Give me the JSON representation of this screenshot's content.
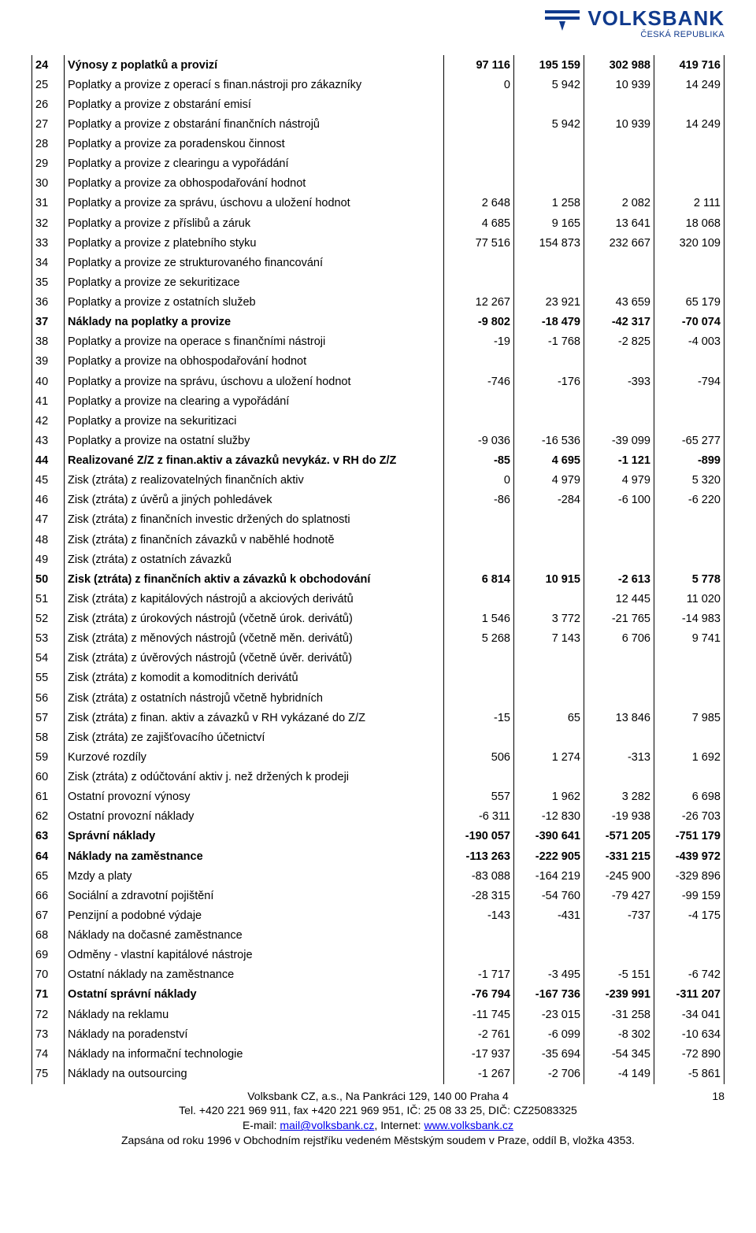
{
  "logo": {
    "brand": "VOLKSBANK",
    "sub": "ČESKÁ REPUBLIKA",
    "mark_color": "#103a8d"
  },
  "col_widths": {
    "n": 32,
    "label": "auto",
    "val": 80
  },
  "rows": [
    {
      "n": "24",
      "label": "Výnosy z poplatků a provizí",
      "v": [
        "97 116",
        "195 159",
        "302 988",
        "419 716"
      ],
      "bold": true
    },
    {
      "n": "25",
      "label": "Poplatky a provize z operací s finan.nástroji pro zákazníky",
      "v": [
        "0",
        "5 942",
        "10 939",
        "14 249"
      ]
    },
    {
      "n": "26",
      "label": "Poplatky a provize z obstarání emisí",
      "v": [
        "",
        "",
        "",
        ""
      ]
    },
    {
      "n": "27",
      "label": "Poplatky a provize z obstarání finančních nástrojů",
      "v": [
        "",
        "5 942",
        "10 939",
        "14 249"
      ]
    },
    {
      "n": "28",
      "label": "Poplatky a provize za poradenskou činnost",
      "v": [
        "",
        "",
        "",
        ""
      ]
    },
    {
      "n": "29",
      "label": "Poplatky a provize z clearingu a vypořádání",
      "v": [
        "",
        "",
        "",
        ""
      ]
    },
    {
      "n": "30",
      "label": "Poplatky a provize za obhospodařování hodnot",
      "v": [
        "",
        "",
        "",
        ""
      ]
    },
    {
      "n": "31",
      "label": "Poplatky a provize za správu, úschovu a uložení hodnot",
      "v": [
        "2 648",
        "1 258",
        "2 082",
        "2 111"
      ]
    },
    {
      "n": "32",
      "label": "Poplatky a provize z  příslibů a záruk",
      "v": [
        "4 685",
        "9 165",
        "13 641",
        "18 068"
      ]
    },
    {
      "n": "33",
      "label": "Poplatky a provize z platebního styku",
      "v": [
        "77 516",
        "154 873",
        "232 667",
        "320 109"
      ]
    },
    {
      "n": "34",
      "label": "Poplatky a provize ze strukturovaného financování",
      "v": [
        "",
        "",
        "",
        ""
      ]
    },
    {
      "n": "35",
      "label": "Poplatky a provize ze sekuritizace",
      "v": [
        "",
        "",
        "",
        ""
      ]
    },
    {
      "n": "36",
      "label": "Poplatky a provize z ostatních služeb",
      "v": [
        "12 267",
        "23 921",
        "43 659",
        "65 179"
      ]
    },
    {
      "n": "37",
      "label": "Náklady na poplatky a provize",
      "v": [
        "-9 802",
        "-18 479",
        "-42 317",
        "-70 074"
      ],
      "bold": true
    },
    {
      "n": "38",
      "label": "Poplatky a provize na operace s finančními nástroji",
      "v": [
        "-19",
        "-1 768",
        "-2 825",
        "-4 003"
      ]
    },
    {
      "n": "39",
      "label": "Poplatky a provize na obhospodařování hodnot",
      "v": [
        "",
        "",
        "",
        ""
      ]
    },
    {
      "n": "40",
      "label": "Poplatky a provize na správu, úschovu a uložení hodnot",
      "v": [
        "-746",
        "-176",
        "-393",
        "-794"
      ]
    },
    {
      "n": "41",
      "label": "Poplatky a provize na clearing a vypořádání",
      "v": [
        "",
        "",
        "",
        ""
      ]
    },
    {
      "n": "42",
      "label": "Poplatky a provize na sekuritizaci",
      "v": [
        "",
        "",
        "",
        ""
      ]
    },
    {
      "n": "43",
      "label": "Poplatky a provize na ostatní služby",
      "v": [
        "-9 036",
        "-16 536",
        "-39 099",
        "-65 277"
      ]
    },
    {
      "n": "44",
      "label": "Realizované Z/Z z finan.aktiv a závazků nevykáz. v RH do Z/Z",
      "v": [
        "-85",
        "4 695",
        "-1 121",
        "-899"
      ],
      "bold": true
    },
    {
      "n": "45",
      "label": "Zisk (ztráta) z realizovatelných finančních aktiv",
      "v": [
        "0",
        "4 979",
        "4 979",
        "5 320"
      ]
    },
    {
      "n": "46",
      "label": "Zisk (ztráta) z úvěrů a jiných pohledávek",
      "v": [
        "-86",
        "-284",
        "-6 100",
        "-6 220"
      ]
    },
    {
      "n": "47",
      "label": "Zisk (ztráta) z finančních investic držených do splatnosti",
      "v": [
        "",
        "",
        "",
        ""
      ]
    },
    {
      "n": "48",
      "label": "Zisk (ztráta) z finančních závazků v naběhlé hodnotě",
      "v": [
        "",
        "",
        "",
        ""
      ]
    },
    {
      "n": "49",
      "label": "Zisk (ztráta) z ostatních závazků",
      "v": [
        "",
        "",
        "",
        ""
      ]
    },
    {
      "n": "50",
      "label": "Zisk (ztráta) z finančních aktiv a závazků  k obchodování",
      "v": [
        "6 814",
        "10 915",
        "-2 613",
        "5 778"
      ],
      "bold": true
    },
    {
      "n": "51",
      "label": "Zisk (ztráta) z kapitálových nástrojů a akciových derivátů",
      "v": [
        "",
        "",
        "12 445",
        "11 020"
      ]
    },
    {
      "n": "52",
      "label": "Zisk (ztráta) z úrokových nástrojů (včetně úrok. derivátů)",
      "v": [
        "1 546",
        "3 772",
        "-21 765",
        "-14 983"
      ]
    },
    {
      "n": "53",
      "label": "Zisk (ztráta) z měnových nástrojů  (včetně měn. derivátů)",
      "v": [
        "5 268",
        "7 143",
        "6 706",
        "9 741"
      ]
    },
    {
      "n": "54",
      "label": "Zisk (ztráta) z úvěrových nástrojů (včetně úvěr. derivátů)",
      "v": [
        "",
        "",
        "",
        ""
      ]
    },
    {
      "n": "55",
      "label": "Zisk (ztráta) z komodit a komoditních derivátů",
      "v": [
        "",
        "",
        "",
        ""
      ]
    },
    {
      "n": "56",
      "label": "Zisk (ztráta) z ostatních nástrojů včetně hybridních",
      "v": [
        "",
        "",
        "",
        ""
      ]
    },
    {
      "n": "57",
      "label": "Zisk (ztráta) z finan. aktiv a závazků v RH vykázané do Z/Z",
      "v": [
        "-15",
        "65",
        "13 846",
        "7 985"
      ]
    },
    {
      "n": "58",
      "label": "Zisk (ztráta) ze zajišťovacího účetnictví",
      "v": [
        "",
        "",
        "",
        ""
      ]
    },
    {
      "n": "59",
      "label": "Kurzové rozdíly",
      "v": [
        "506",
        "1 274",
        "-313",
        "1 692"
      ]
    },
    {
      "n": "60",
      "label": "Zisk (ztráta) z odúčtování aktiv j. než držených k prodeji",
      "v": [
        "",
        "",
        "",
        ""
      ]
    },
    {
      "n": "61",
      "label": "Ostatní provozní výnosy",
      "v": [
        "557",
        "1 962",
        "3 282",
        "6 698"
      ]
    },
    {
      "n": "62",
      "label": "Ostatní provozní náklady",
      "v": [
        "-6 311",
        "-12 830",
        "-19 938",
        "-26 703"
      ]
    },
    {
      "n": "63",
      "label": "Správní náklady",
      "v": [
        "-190 057",
        "-390 641",
        "-571 205",
        "-751 179"
      ],
      "bold": true
    },
    {
      "n": "64",
      "label": "Náklady na zaměstnance",
      "v": [
        "-113 263",
        "-222 905",
        "-331 215",
        "-439 972"
      ],
      "bold": true
    },
    {
      "n": "65",
      "label": "Mzdy a platy",
      "v": [
        "-83 088",
        "-164 219",
        "-245 900",
        "-329 896"
      ]
    },
    {
      "n": "66",
      "label": "Sociální a zdravotní pojištění",
      "v": [
        "-28 315",
        "-54 760",
        "-79 427",
        "-99 159"
      ]
    },
    {
      "n": "67",
      "label": "Penzijní a podobné výdaje",
      "v": [
        "-143",
        "-431",
        "-737",
        "-4 175"
      ]
    },
    {
      "n": "68",
      "label": "Náklady na dočasné  zaměstnance",
      "v": [
        "",
        "",
        "",
        ""
      ]
    },
    {
      "n": "69",
      "label": "Odměny - vlastní kapitálové nástroje",
      "v": [
        "",
        "",
        "",
        ""
      ]
    },
    {
      "n": "70",
      "label": "Ostatní náklady na zaměstnance",
      "v": [
        "-1 717",
        "-3 495",
        "-5 151",
        "-6 742"
      ]
    },
    {
      "n": "71",
      "label": "Ostatní správní náklady",
      "v": [
        "-76 794",
        "-167 736",
        "-239 991",
        "-311 207"
      ],
      "bold": true
    },
    {
      "n": "72",
      "label": "Náklady na reklamu",
      "v": [
        "-11 745",
        "-23 015",
        "-31 258",
        "-34 041"
      ]
    },
    {
      "n": "73",
      "label": "Náklady na poradenství",
      "v": [
        "-2 761",
        "-6 099",
        "-8 302",
        "-10 634"
      ]
    },
    {
      "n": "74",
      "label": "Náklady na informační technologie",
      "v": [
        "-17 937",
        "-35 694",
        "-54 345",
        "-72 890"
      ]
    },
    {
      "n": "75",
      "label": "Náklady na outsourcing",
      "v": [
        "-1 267",
        "-2 706",
        "-4 149",
        "-5 861"
      ]
    }
  ],
  "footer": {
    "line1": "Volksbank CZ, a.s., Na Pankráci 129, 140 00 Praha 4",
    "line2": "Tel. +420 221 969 911, fax +420 221 969 951, IČ: 25 08 33 25, DIČ: CZ25083325",
    "line3_prefix": "E-mail: ",
    "email": "mail@volksbank.cz",
    "line3_mid": ", Internet: ",
    "web": "www.volksbank.cz",
    "line4": "Zapsána od roku 1996 v Obchodním rejstříku vedeném Městským soudem v Praze, oddíl B, vložka 4353.",
    "page_number": "18"
  }
}
